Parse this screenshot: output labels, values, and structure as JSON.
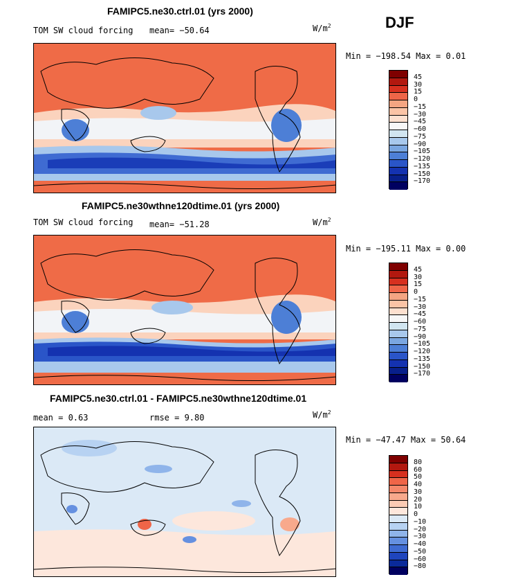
{
  "season": "DJF",
  "panels": [
    {
      "title": "FAMIPC5.ne30.ctrl.01 (yrs 2000)",
      "variable": "TOM SW cloud forcing",
      "stat_text": "mean= −50.64",
      "units": "W/m",
      "units_sup": "2",
      "minmax": "Min = −198.54 Max =    0.01",
      "levels": [
        "45",
        "30",
        "15",
        "0",
        "−15",
        "−30",
        "−45",
        "−60",
        "−75",
        "−90",
        "−105",
        "−120",
        "−135",
        "−150",
        "−170"
      ],
      "colors": [
        "#7f0000",
        "#b2180f",
        "#d7301f",
        "#ef6548",
        "#f4a582",
        "#fbc4a6",
        "#fde0cf",
        "#f7f7f7",
        "#d1e5f0",
        "#a8c8ec",
        "#7aa6e0",
        "#4d7fd6",
        "#2a55c8",
        "#1432b0",
        "#081f8a",
        "#000060"
      ]
    },
    {
      "title": "FAMIPC5.ne30wthne120dtime.01 (yrs 2000)",
      "variable": "TOM SW cloud forcing",
      "stat_text": "mean= −51.28",
      "units": "W/m",
      "units_sup": "2",
      "minmax": "Min = −195.11 Max =    0.00",
      "levels": [
        "45",
        "30",
        "15",
        "0",
        "−15",
        "−30",
        "−45",
        "−60",
        "−75",
        "−90",
        "−105",
        "−120",
        "−135",
        "−150",
        "−170"
      ],
      "colors": [
        "#7f0000",
        "#b2180f",
        "#d7301f",
        "#ef6548",
        "#f4a582",
        "#fbc4a6",
        "#fde0cf",
        "#f7f7f7",
        "#d1e5f0",
        "#a8c8ec",
        "#7aa6e0",
        "#4d7fd6",
        "#2a55c8",
        "#1432b0",
        "#081f8a",
        "#000060"
      ]
    },
    {
      "title": "FAMIPC5.ne30.ctrl.01 - FAMIPC5.ne30wthne120dtime.01",
      "mean_text": "mean =   0.63",
      "rmse_text": "rmse =   9.80",
      "units": "W/m",
      "units_sup": "2",
      "minmax": "Min = −47.47 Max =  50.64",
      "levels": [
        "80",
        "60",
        "50",
        "40",
        "30",
        "20",
        "10",
        "0",
        "−10",
        "−20",
        "−30",
        "−40",
        "−50",
        "−60",
        "−80"
      ],
      "colors": [
        "#7f0000",
        "#b2180f",
        "#d7301f",
        "#ef6548",
        "#f4876a",
        "#f8a98c",
        "#fbcbb4",
        "#fde7dc",
        "#dbe9f6",
        "#b7d2f2",
        "#8fb4ea",
        "#6590e0",
        "#3f6bd2",
        "#1f45bd",
        "#0a2a9a",
        "#000060"
      ]
    }
  ]
}
